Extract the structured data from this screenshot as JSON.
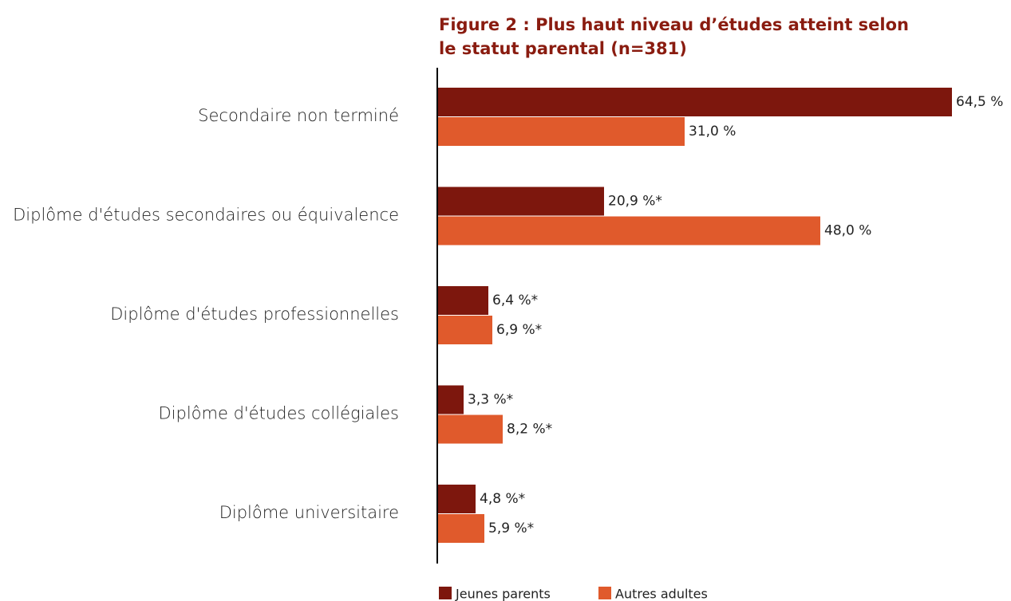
{
  "chart_data": {
    "type": "bar",
    "orientation": "horizontal",
    "title": "Figure 2 : Plus haut niveau d’études atteint selon le statut parental (n=381)",
    "categories": [
      "Secondaire non terminé",
      "Diplôme d'études secondaires ou équivalence",
      "Diplôme d'études professionnelles",
      "Diplôme d'études collégiales",
      "Diplôme universitaire"
    ],
    "series": [
      {
        "name": "Jeunes parents",
        "color": "#7d170d",
        "values": [
          64.5,
          20.9,
          6.4,
          3.3,
          4.8
        ],
        "value_labels": [
          "64,5 %",
          "20,9 %*",
          "6,4 %*",
          "3,3 %*",
          "4,8 %*"
        ]
      },
      {
        "name": "Autres adultes",
        "color": "#e05a2c",
        "values": [
          31.0,
          48.0,
          6.9,
          8.2,
          5.9
        ],
        "value_labels": [
          "31,0 %",
          "48,0 %",
          "6,9 %*",
          "8,2 %*",
          "5,9 %*"
        ]
      }
    ],
    "xlim": [
      0,
      70
    ]
  }
}
